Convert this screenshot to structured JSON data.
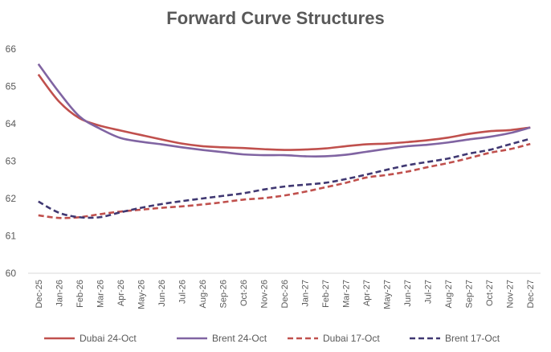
{
  "chart_data": {
    "type": "line",
    "title": "Forward Curve Structures",
    "xlabel": "",
    "ylabel": "",
    "ylim": [
      60,
      66
    ],
    "yticks": [
      "60",
      "61",
      "62",
      "63",
      "64",
      "65",
      "66"
    ],
    "grid": false,
    "legend_position": "bottom",
    "categories": [
      "Dec-25",
      "Jan-26",
      "Feb-26",
      "Mar-26",
      "Apr-26",
      "May-26",
      "Jun-26",
      "Jul-26",
      "Aug-26",
      "Sep-26",
      "Oct-26",
      "Nov-26",
      "Dec-26",
      "Jan-27",
      "Feb-27",
      "Mar-27",
      "Apr-27",
      "May-27",
      "Jun-27",
      "Jul-27",
      "Aug-27",
      "Sep-27",
      "Oct-27",
      "Nov-27",
      "Dec-27"
    ],
    "series": [
      {
        "name": "Dubai 24-Oct",
        "color": "#C0504D",
        "dash": "solid",
        "values": [
          65.32,
          64.6,
          64.15,
          63.95,
          63.82,
          63.7,
          63.58,
          63.47,
          63.4,
          63.37,
          63.35,
          63.32,
          63.3,
          63.31,
          63.34,
          63.4,
          63.45,
          63.47,
          63.51,
          63.56,
          63.63,
          63.73,
          63.8,
          63.83,
          63.9
        ]
      },
      {
        "name": "Brent 24-Oct",
        "color": "#8064A2",
        "dash": "solid",
        "values": [
          65.6,
          64.85,
          64.2,
          63.87,
          63.62,
          63.52,
          63.45,
          63.37,
          63.3,
          63.24,
          63.18,
          63.16,
          63.16,
          63.13,
          63.13,
          63.17,
          63.25,
          63.33,
          63.4,
          63.44,
          63.5,
          63.58,
          63.65,
          63.75,
          63.9
        ]
      },
      {
        "name": "Dubai 17-Oct",
        "color": "#C0504D",
        "dash": "dashed",
        "values": [
          61.55,
          61.48,
          61.5,
          61.58,
          61.65,
          61.7,
          61.75,
          61.79,
          61.84,
          61.9,
          61.97,
          62.01,
          62.08,
          62.18,
          62.3,
          62.42,
          62.56,
          62.63,
          62.72,
          62.84,
          62.95,
          63.08,
          63.22,
          63.32,
          63.46
        ]
      },
      {
        "name": "Brent 17-Oct",
        "color": "#403872",
        "dash": "dashed",
        "values": [
          61.92,
          61.62,
          61.5,
          61.5,
          61.63,
          61.75,
          61.85,
          61.93,
          62.0,
          62.07,
          62.14,
          62.24,
          62.32,
          62.37,
          62.42,
          62.52,
          62.64,
          62.77,
          62.89,
          62.98,
          63.07,
          63.2,
          63.3,
          63.45,
          63.6
        ]
      }
    ]
  }
}
